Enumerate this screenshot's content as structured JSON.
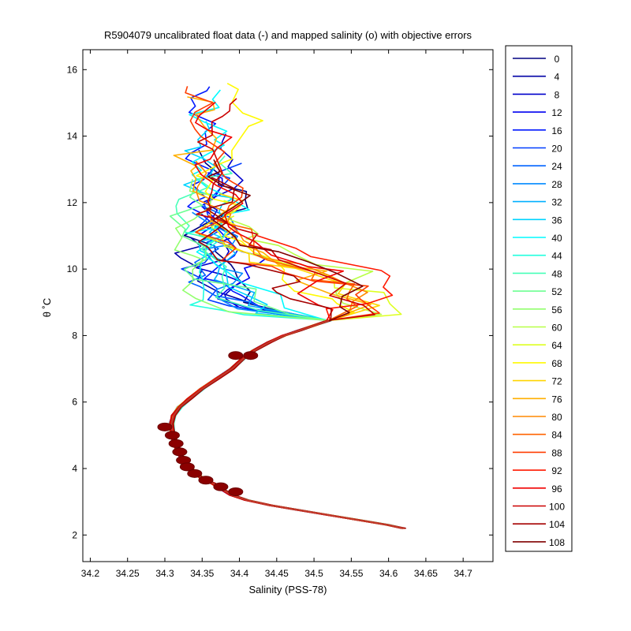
{
  "chart_data": {
    "type": "line",
    "title": "R5904079 uncalibrated float data (-) and mapped salinity (o) with objective errors",
    "xlabel": "Salinity (PSS-78)",
    "ylabel": "θ ˚C",
    "xlim": [
      34.19,
      34.74
    ],
    "ylim": [
      1.2,
      16.6
    ],
    "xticks": [
      "34.2",
      "34.25",
      "34.3",
      "34.35",
      "34.4",
      "34.45",
      "34.5",
      "34.55",
      "34.6",
      "34.65",
      "34.7"
    ],
    "yticks": [
      "2",
      "4",
      "6",
      "8",
      "10",
      "12",
      "14",
      "16"
    ],
    "grid": false,
    "legend_position": "outside-right",
    "legend": [
      "0",
      "4",
      "8",
      "12",
      "16",
      "20",
      "24",
      "28",
      "32",
      "36",
      "40",
      "44",
      "48",
      "52",
      "56",
      "60",
      "64",
      "68",
      "72",
      "76",
      "80",
      "84",
      "88",
      "92",
      "96",
      "100",
      "104",
      "108"
    ],
    "colormap": "jet",
    "deep_profile": {
      "points": [
        [
          34.62,
          2.2
        ],
        [
          34.6,
          2.3
        ],
        [
          34.56,
          2.45
        ],
        [
          34.52,
          2.6
        ],
        [
          34.48,
          2.75
        ],
        [
          34.44,
          2.9
        ],
        [
          34.41,
          3.05
        ],
        [
          34.39,
          3.2
        ],
        [
          34.375,
          3.4
        ],
        [
          34.365,
          3.55
        ],
        [
          34.35,
          3.7
        ],
        [
          34.34,
          3.9
        ],
        [
          34.33,
          4.1
        ],
        [
          34.323,
          4.35
        ],
        [
          34.317,
          4.6
        ],
        [
          34.313,
          4.85
        ],
        [
          34.31,
          5.1
        ],
        [
          34.309,
          5.35
        ],
        [
          34.312,
          5.6
        ],
        [
          34.32,
          5.85
        ],
        [
          34.333,
          6.1
        ],
        [
          34.35,
          6.4
        ],
        [
          34.37,
          6.7
        ],
        [
          34.39,
          7.0
        ],
        [
          34.405,
          7.3
        ],
        [
          34.42,
          7.55
        ],
        [
          34.44,
          7.8
        ],
        [
          34.46,
          8.0
        ],
        [
          34.48,
          8.15
        ],
        [
          34.5,
          8.3
        ],
        [
          34.52,
          8.45
        ]
      ]
    },
    "mapped_points": [
      [
        34.3,
        5.25
      ],
      [
        34.31,
        5.0
      ],
      [
        34.315,
        4.75
      ],
      [
        34.32,
        4.5
      ],
      [
        34.325,
        4.25
      ],
      [
        34.33,
        4.05
      ],
      [
        34.34,
        3.85
      ],
      [
        34.355,
        3.65
      ],
      [
        34.375,
        3.45
      ],
      [
        34.395,
        3.3
      ],
      [
        34.415,
        7.4
      ],
      [
        34.395,
        7.4
      ]
    ]
  }
}
